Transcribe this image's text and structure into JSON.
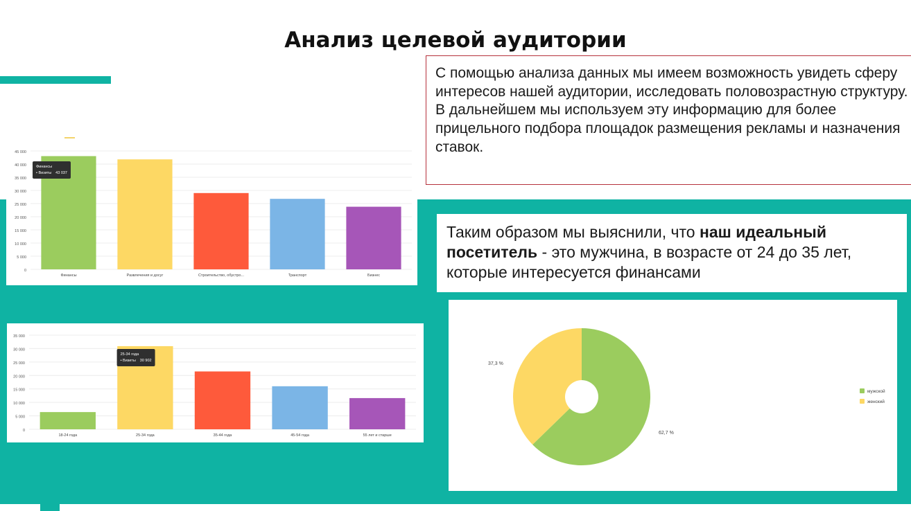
{
  "title": "Анализ целевой аудитории",
  "intro": {
    "paragraph1": "С помощью анализа данных мы имеем возможность увидеть сферу интересов нашей аудитории, исследовать половозрастную структуру.",
    "paragraph2": "В дальнейшем мы используем эту информацию для более прицельного подбора площадок размещения рекламы и назначения ставок."
  },
  "conclusion": {
    "before": "Таким образом мы выяснили, что ",
    "bold": "наш идеальный посетитель",
    "after": " - это мужчина, в возрасте от 24 до 35 лет, которые интересуется финансами"
  },
  "colors": {
    "teal": "#0fb3a3",
    "green": "#9bcc5e",
    "yellow": "#fdd864",
    "red": "#fe5a3b",
    "blue": "#7bb5e6",
    "purple": "#a656b8"
  },
  "chart_data": [
    {
      "type": "bar",
      "categories": [
        "Финансы",
        "Развлечения и досуг",
        "Строительство, обустро...",
        "Транспорт",
        "Бизнес"
      ],
      "values": [
        43037,
        41800,
        29000,
        26800,
        23800
      ],
      "colors": [
        "#9bcc5e",
        "#fdd864",
        "#fe5a3b",
        "#7bb5e6",
        "#a656b8"
      ],
      "yticks": [
        "0",
        "5 000",
        "10 000",
        "15 000",
        "20 000",
        "25 000",
        "30 000",
        "35 000",
        "40 000",
        "45 000"
      ],
      "ylim": [
        0,
        45000
      ],
      "tooltip": {
        "title": "Финансы",
        "label": "• Визиты",
        "value": "43 037"
      }
    },
    {
      "type": "bar",
      "categories": [
        "18-24 года",
        "25-34 года",
        "35-44 года",
        "45-54 года",
        "55 лет и старше"
      ],
      "values": [
        6400,
        30902,
        21500,
        16000,
        11600
      ],
      "colors": [
        "#9bcc5e",
        "#fdd864",
        "#fe5a3b",
        "#7bb5e6",
        "#a656b8"
      ],
      "yticks": [
        "0",
        "5 000",
        "10 000",
        "15 000",
        "20 000",
        "25 000",
        "30 000",
        "35 000"
      ],
      "ylim": [
        0,
        35000
      ],
      "tooltip": {
        "title": "25-34 года",
        "label": "• Визиты",
        "value": "30 902"
      }
    },
    {
      "type": "pie",
      "slices": [
        {
          "name": "мужской",
          "value": 62.7,
          "label": "62,7 %",
          "color": "#9bcc5e"
        },
        {
          "name": "женский",
          "value": 37.3,
          "label": "37,3 %",
          "color": "#fdd864"
        }
      ]
    }
  ]
}
